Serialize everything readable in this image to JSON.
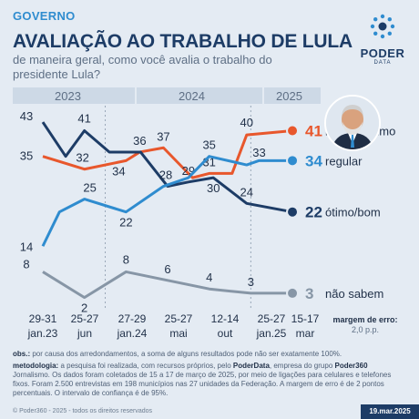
{
  "header": {
    "kicker": "GOVERNO",
    "title": "AVALIAÇÃO AO TRABALHO DE LULA",
    "subtitle": "de maneira geral, como você avalia o trabalho do presidente Lula?"
  },
  "logo": {
    "word": "PODER",
    "sub": "DATA"
  },
  "years": [
    "2023",
    "2024",
    "2025"
  ],
  "colors": {
    "ruim_pessimo": "#e8572c",
    "regular": "#2f8ccf",
    "otimo_bom": "#1d3c66",
    "nao_sabem": "#8796a6",
    "background": "#e4ebf3"
  },
  "chart_data": {
    "type": "line",
    "x_labels": [
      [
        "29-31",
        "jan.23"
      ],
      [
        "25-27",
        "jun"
      ],
      [
        "27-29",
        "jan.24"
      ],
      [
        "25-27",
        "mai"
      ],
      [
        "12-14",
        "out"
      ],
      [
        "25-27",
        "jan.25"
      ],
      [
        "15-17",
        "mar"
      ]
    ],
    "series": [
      {
        "key": "ruim_pessimo",
        "name": "ruim/péssimo",
        "color": "#e8572c",
        "points": [
          [
            0,
            35
          ],
          [
            1,
            32
          ],
          [
            2,
            34
          ],
          [
            2.33,
            36
          ],
          [
            2.9,
            37
          ],
          [
            3.6,
            30
          ],
          [
            4,
            31
          ],
          [
            4.55,
            31
          ],
          [
            4.9,
            40
          ],
          [
            6,
            41
          ]
        ],
        "labels": [
          [
            0,
            35
          ],
          [
            1,
            32
          ],
          [
            2,
            34
          ],
          [
            2.9,
            37
          ],
          [
            4,
            31
          ],
          [
            4.9,
            40
          ],
          [
            6,
            41
          ]
        ],
        "end_value": "41"
      },
      {
        "key": "otimo_bom",
        "name": "ótimo/bom",
        "color": "#1d3c66",
        "points": [
          [
            0,
            43
          ],
          [
            0.55,
            35
          ],
          [
            1,
            41
          ],
          [
            1.6,
            36
          ],
          [
            2.35,
            36
          ],
          [
            3,
            28
          ],
          [
            3.5,
            29
          ],
          [
            4.1,
            30
          ],
          [
            4.9,
            24
          ],
          [
            6,
            22
          ]
        ],
        "labels": [
          [
            0,
            43
          ],
          [
            1,
            41
          ],
          [
            2.33,
            36
          ],
          [
            3.5,
            29
          ],
          [
            4.1,
            30
          ],
          [
            4.9,
            24
          ],
          [
            6,
            22
          ]
        ],
        "end_value": "22"
      },
      {
        "key": "regular",
        "name": "regular",
        "color": "#2f8ccf",
        "points": [
          [
            0,
            14
          ],
          [
            0.4,
            22
          ],
          [
            1,
            25
          ],
          [
            2,
            22
          ],
          [
            2.9,
            28
          ],
          [
            3.5,
            30
          ],
          [
            4,
            35
          ],
          [
            4.9,
            33
          ],
          [
            5.2,
            34
          ],
          [
            6,
            34
          ]
        ],
        "labels": [
          [
            0,
            14
          ],
          [
            1,
            25
          ],
          [
            2,
            22
          ],
          [
            3,
            28
          ],
          [
            4,
            35
          ],
          [
            5.2,
            33
          ],
          [
            6,
            34
          ]
        ],
        "end_value": "34"
      },
      {
        "key": "nao_sabem",
        "name": "não sabem",
        "color": "#8796a6",
        "points": [
          [
            0,
            8
          ],
          [
            1,
            2
          ],
          [
            2,
            8
          ],
          [
            3,
            6
          ],
          [
            4,
            4
          ],
          [
            5,
            3
          ],
          [
            6,
            3
          ]
        ],
        "labels": [
          [
            0,
            8
          ],
          [
            1,
            2
          ],
          [
            2,
            8
          ],
          [
            3,
            6
          ],
          [
            4,
            4
          ],
          [
            5,
            3
          ]
        ],
        "end_value": "3"
      }
    ],
    "ylim": [
      0,
      46
    ],
    "year_breaks": [
      1.5,
      5
    ]
  },
  "margin": {
    "label": "margem de erro:",
    "value": "2,0 p.p."
  },
  "notes": {
    "obs_label": "obs.:",
    "obs_text": " por causa dos arredondamentos, a soma de alguns resultados pode não ser exatamente 100%.",
    "method_label": "metodologia:",
    "method_text_1": " a pesquisa foi realizada, com recursos próprios, pelo ",
    "method_org_1": "PoderData",
    "method_text_2": ", empresa do grupo ",
    "method_org_2": "Poder360",
    "method_text_3": " Jornalismo. Os dados foram coletados de 15 a 17 de março de 2025, por meio de ligações para celulares e telefones fixos. Foram 2.500 entrevistas em 198 municípios nas 27 unidades da Federação. A margem de erro é de 2 pontos percentuais. O intervalo de confiança é de 95%."
  },
  "footer": "© Poder360 - 2025 - todos os direitos reservados",
  "date": "19.mar.2025"
}
